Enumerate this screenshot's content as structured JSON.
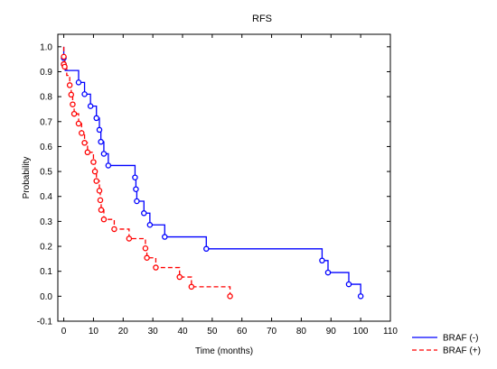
{
  "chart_data": {
    "type": "line",
    "title": "RFS",
    "xlabel": "Time (months)",
    "ylabel": "Probability",
    "xlim": [
      -2,
      110
    ],
    "ylim": [
      -0.1,
      1.05
    ],
    "x_ticks": [
      0,
      10,
      20,
      30,
      40,
      50,
      60,
      70,
      80,
      90,
      100,
      110
    ],
    "y_ticks": [
      -0.1,
      0.0,
      0.1,
      0.2,
      0.3,
      0.4,
      0.5,
      0.6,
      0.7,
      0.8,
      0.9,
      1.0
    ],
    "y_tick_labels": [
      "-0.1",
      "0.0",
      "0.1",
      "0.2",
      "0.3",
      "0.4",
      "0.5",
      "0.6",
      "0.7",
      "0.8",
      "0.9",
      "1.0"
    ],
    "grid": false,
    "legend_position": "bottom-right",
    "series": [
      {
        "name": "BRAF (-)",
        "color": "#0000ff",
        "style": "solid",
        "step": [
          [
            0,
            1.0
          ],
          [
            0,
            0.955
          ],
          [
            0.5,
            0.935
          ],
          [
            0.5,
            0.905
          ],
          [
            5,
            0.905
          ],
          [
            5,
            0.857
          ],
          [
            7,
            0.857
          ],
          [
            7,
            0.81
          ],
          [
            9,
            0.81
          ],
          [
            9,
            0.762
          ],
          [
            11,
            0.762
          ],
          [
            11,
            0.714
          ],
          [
            12,
            0.714
          ],
          [
            12,
            0.667
          ],
          [
            12.5,
            0.667
          ],
          [
            12.5,
            0.619
          ],
          [
            13.5,
            0.619
          ],
          [
            13.5,
            0.571
          ],
          [
            15,
            0.571
          ],
          [
            15,
            0.524
          ],
          [
            24,
            0.524
          ],
          [
            24,
            0.476
          ],
          [
            24.3,
            0.476
          ],
          [
            24.3,
            0.429
          ],
          [
            24.6,
            0.429
          ],
          [
            24.6,
            0.381
          ],
          [
            27,
            0.381
          ],
          [
            27,
            0.333
          ],
          [
            29,
            0.333
          ],
          [
            29,
            0.286
          ],
          [
            34,
            0.286
          ],
          [
            34,
            0.238
          ],
          [
            48,
            0.238
          ],
          [
            48,
            0.19
          ],
          [
            87,
            0.19
          ],
          [
            87,
            0.143
          ],
          [
            89,
            0.143
          ],
          [
            89,
            0.095
          ],
          [
            96,
            0.095
          ],
          [
            96,
            0.048
          ],
          [
            100,
            0.048
          ],
          [
            100,
            0.0
          ]
        ],
        "events": [
          [
            0,
            0.955
          ],
          [
            0,
            0.93
          ],
          [
            5,
            0.857
          ],
          [
            7,
            0.81
          ],
          [
            9,
            0.762
          ],
          [
            11,
            0.714
          ],
          [
            12,
            0.667
          ],
          [
            12.5,
            0.619
          ],
          [
            13.5,
            0.571
          ],
          [
            15,
            0.524
          ],
          [
            24,
            0.476
          ],
          [
            24.3,
            0.429
          ],
          [
            24.6,
            0.381
          ],
          [
            27,
            0.333
          ],
          [
            29,
            0.286
          ],
          [
            34,
            0.238
          ],
          [
            48,
            0.19
          ],
          [
            87,
            0.143
          ],
          [
            89,
            0.095
          ],
          [
            96,
            0.048
          ],
          [
            100,
            0.0
          ]
        ]
      },
      {
        "name": "BRAF (+)",
        "color": "#ff0000",
        "style": "dashed",
        "step": [
          [
            0,
            1.0
          ],
          [
            0,
            0.96
          ],
          [
            0.3,
            0.96
          ],
          [
            0.3,
            0.92
          ],
          [
            1,
            0.92
          ],
          [
            1,
            0.885
          ],
          [
            2,
            0.885
          ],
          [
            2,
            0.846
          ],
          [
            2.5,
            0.846
          ],
          [
            2.5,
            0.808
          ],
          [
            3,
            0.808
          ],
          [
            3,
            0.769
          ],
          [
            3.5,
            0.769
          ],
          [
            3.5,
            0.731
          ],
          [
            5,
            0.731
          ],
          [
            5,
            0.692
          ],
          [
            6,
            0.692
          ],
          [
            6,
            0.654
          ],
          [
            7,
            0.654
          ],
          [
            7,
            0.615
          ],
          [
            8,
            0.615
          ],
          [
            8,
            0.577
          ],
          [
            10,
            0.577
          ],
          [
            10,
            0.538
          ],
          [
            10.5,
            0.538
          ],
          [
            10.5,
            0.5
          ],
          [
            11,
            0.5
          ],
          [
            11,
            0.462
          ],
          [
            12,
            0.462
          ],
          [
            12,
            0.423
          ],
          [
            12.3,
            0.423
          ],
          [
            12.3,
            0.385
          ],
          [
            12.6,
            0.385
          ],
          [
            12.6,
            0.346
          ],
          [
            13.5,
            0.346
          ],
          [
            13.5,
            0.308
          ],
          [
            17,
            0.308
          ],
          [
            17,
            0.269
          ],
          [
            22,
            0.269
          ],
          [
            22,
            0.231
          ],
          [
            27.5,
            0.231
          ],
          [
            27.5,
            0.192
          ],
          [
            28,
            0.192
          ],
          [
            28,
            0.154
          ],
          [
            31,
            0.154
          ],
          [
            31,
            0.115
          ],
          [
            39,
            0.115
          ],
          [
            39,
            0.077
          ],
          [
            43,
            0.077
          ],
          [
            43,
            0.038
          ],
          [
            56,
            0.038
          ],
          [
            56,
            0.0
          ]
        ],
        "events": [
          [
            0,
            0.96
          ],
          [
            0,
            0.93
          ],
          [
            0.3,
            0.92
          ],
          [
            2,
            0.846
          ],
          [
            2.5,
            0.808
          ],
          [
            3,
            0.769
          ],
          [
            3.5,
            0.731
          ],
          [
            5,
            0.692
          ],
          [
            6,
            0.654
          ],
          [
            7,
            0.615
          ],
          [
            8,
            0.577
          ],
          [
            10,
            0.538
          ],
          [
            10.5,
            0.5
          ],
          [
            11,
            0.462
          ],
          [
            12,
            0.423
          ],
          [
            12.3,
            0.385
          ],
          [
            12.6,
            0.346
          ],
          [
            13.5,
            0.308
          ],
          [
            17,
            0.269
          ],
          [
            22,
            0.231
          ],
          [
            27.5,
            0.192
          ],
          [
            28,
            0.154
          ],
          [
            31,
            0.115
          ],
          [
            39,
            0.077
          ],
          [
            43,
            0.038
          ],
          [
            56,
            0.0
          ]
        ]
      }
    ]
  }
}
